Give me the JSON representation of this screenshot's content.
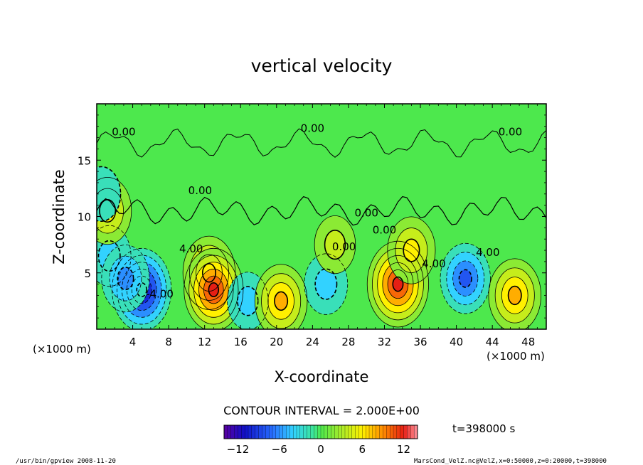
{
  "chart_data": {
    "type": "heatmap",
    "title": "vertical velocity",
    "xlabel": "X-coordinate",
    "ylabel": "Z-coordinate",
    "x_unit": "(×1000 m)",
    "z_unit": "(×1000 m)",
    "xlim": [
      0,
      50
    ],
    "ylim": [
      0,
      20
    ],
    "x_ticks": [
      "4",
      "8",
      "12",
      "16",
      "20",
      "24",
      "28",
      "32",
      "36",
      "40",
      "44",
      "48"
    ],
    "y_ticks": [
      "5",
      "10",
      "15"
    ],
    "x_tick_values": [
      4,
      8,
      12,
      16,
      20,
      24,
      28,
      32,
      36,
      40,
      44,
      48
    ],
    "y_tick_values": [
      5,
      10,
      15
    ],
    "contour_interval_text": "CONTOUR INTERVAL = 2.000E+00",
    "contour_labels": [
      "0.00",
      "0.00",
      "0.00",
      "0.00",
      "0.00",
      "0.00",
      "0.00",
      "4.00",
      "4.00",
      "4.00",
      "-4.00"
    ],
    "colorbar": {
      "range": [
        -14,
        14
      ],
      "ticks": [
        "−12",
        "−6",
        "0",
        "6",
        "12"
      ],
      "tick_values": [
        -12,
        -6,
        0,
        6,
        12
      ]
    },
    "cells": [
      {
        "x": 1.4,
        "z": 6.5,
        "w": -4
      },
      {
        "x": 5.0,
        "z": 3.5,
        "w": -11
      },
      {
        "x": 3.2,
        "z": 4.5,
        "w": -6
      },
      {
        "x": 12.5,
        "z": 5.0,
        "w": 8
      },
      {
        "x": 13.0,
        "z": 3.5,
        "w": 11
      },
      {
        "x": 16.8,
        "z": 2.5,
        "w": -3
      },
      {
        "x": 20.5,
        "z": 2.5,
        "w": 8
      },
      {
        "x": 25.5,
        "z": 4.0,
        "w": -4
      },
      {
        "x": 26.5,
        "z": 7.5,
        "w": 3
      },
      {
        "x": 33.5,
        "z": 4.0,
        "w": 12
      },
      {
        "x": 35.0,
        "z": 7.0,
        "w": 6
      },
      {
        "x": 41.0,
        "z": 4.5,
        "w": -7
      },
      {
        "x": 46.5,
        "z": 3.0,
        "w": 8
      },
      {
        "x": 1.2,
        "z": 10.5,
        "w": 6
      },
      {
        "x": 0.5,
        "z": 12.0,
        "w": -2
      }
    ]
  },
  "footer": {
    "left": "/usr/bin/gpview   2008-11-20",
    "right": "MarsCond_VelZ.nc@VelZ,x=0:50000,z=0:20000,t=398000"
  },
  "time_label": "t=398000 s"
}
